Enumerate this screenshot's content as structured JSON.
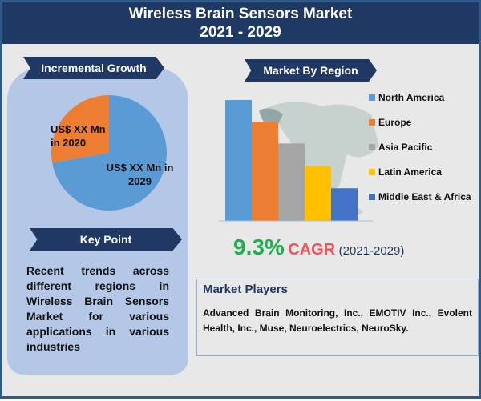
{
  "header": {
    "title": "Wireless Brain Sensors Market",
    "years": "2021 - 2029"
  },
  "left": {
    "ribbon_growth": "Incremental Growth",
    "pie": {
      "label_2020": "US$ XX Mn in 2020",
      "label_2029": "US$ XX Mn in 2029",
      "colors": {
        "2020": "#ed7d31",
        "2029": "#5b9bd5"
      }
    },
    "ribbon_key": "Key Point",
    "key_text": "Recent trends across different regions in Wireless Brain Sensors Market for various applications in various industries"
  },
  "right": {
    "ribbon_region": "Market By Region",
    "cagr": {
      "value": "9.3%",
      "label": "CAGR",
      "period": "(2021-2029)"
    }
  },
  "chart_data": {
    "type": "bar",
    "categories": [
      "North America",
      "Europe",
      "Asia Pacific",
      "Latin America",
      "Middle East & Africa"
    ],
    "values": [
      100,
      82,
      64,
      45,
      27
    ],
    "colors": [
      "#5b9bd5",
      "#ed7d31",
      "#a5a5a5",
      "#ffc000",
      "#4472c4"
    ],
    "legend": "right",
    "grid": false
  },
  "players": {
    "title": "Market Players",
    "text": "Advanced Brain Monitoring, Inc., EMOTIV Inc., Evolent Health, Inc., Muse, Neuroelectrics, NeuroSky."
  }
}
